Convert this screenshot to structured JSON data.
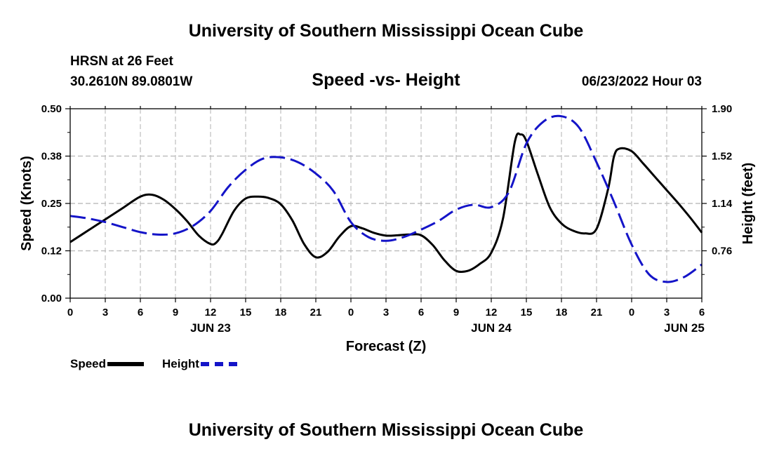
{
  "page": {
    "title_top": "University of Southern Mississippi Ocean Cube",
    "title_bottom": "University of Southern Mississippi Ocean Cube",
    "station": "HRSN at 26 Feet",
    "coords": "30.2610N  89.0801W",
    "chart_title": "Speed -vs- Height",
    "datetime": "06/23/2022 Hour 03"
  },
  "legend": {
    "speed_label": "Speed",
    "height_label": "Height"
  },
  "colors": {
    "speed": "#000000",
    "height": "#1414c8",
    "grid": "#bdbdbd"
  },
  "chart_data": {
    "type": "line",
    "title": "Speed -vs- Height",
    "xlabel": "Forecast (Z)",
    "ylabel_left": "Speed (Knots)",
    "ylabel_right": "Height (feet)",
    "x_unit": "hours since 06/23/2022 00Z",
    "xlim": [
      0,
      54
    ],
    "x_ticks": [
      0,
      3,
      6,
      9,
      12,
      15,
      18,
      21,
      24,
      27,
      30,
      33,
      36,
      39,
      42,
      45,
      48,
      51,
      54
    ],
    "x_tick_labels": [
      "0",
      "3",
      "6",
      "9",
      "12",
      "15",
      "18",
      "21",
      "0",
      "3",
      "6",
      "9",
      "12",
      "15",
      "18",
      "21",
      "0",
      "3",
      "6"
    ],
    "date_labels": [
      {
        "x": 12,
        "label": "JUN 23"
      },
      {
        "x": 36,
        "label": "JUN 24"
      },
      {
        "x": 52.5,
        "label": "JUN 25"
      }
    ],
    "y_left": {
      "lim": [
        0.0,
        0.5
      ],
      "ticks": [
        0.0,
        0.125,
        0.25,
        0.375,
        0.5
      ],
      "tick_labels": [
        "0.00",
        "0.12",
        "0.25",
        "0.38",
        "0.50"
      ]
    },
    "y_right": {
      "lim": [
        0.38,
        1.9
      ],
      "ticks": [
        0.76,
        1.14,
        1.52,
        1.9
      ],
      "tick_labels": [
        "0.76",
        "1.14",
        "1.52",
        "1.90"
      ]
    },
    "grid": true,
    "legend_position": "bottom-left",
    "series": [
      {
        "name": "Speed",
        "axis": "left",
        "style": "solid",
        "x": [
          0,
          1.5,
          3,
          4.5,
          6,
          7,
          8,
          9,
          10,
          11,
          12,
          12.5,
          13,
          14,
          15,
          16,
          17,
          18,
          19,
          20,
          21,
          22,
          23,
          24,
          25,
          26,
          27,
          28,
          29,
          30,
          31,
          32,
          33,
          34,
          35,
          36,
          37,
          38,
          38.5,
          39,
          40,
          41,
          42,
          43,
          44,
          45,
          46,
          46.5,
          47,
          48,
          49,
          50,
          51,
          52,
          53,
          54
        ],
        "y": [
          0.148,
          0.178,
          0.208,
          0.238,
          0.268,
          0.273,
          0.26,
          0.235,
          0.203,
          0.165,
          0.143,
          0.147,
          0.17,
          0.23,
          0.263,
          0.268,
          0.264,
          0.248,
          0.205,
          0.143,
          0.108,
          0.122,
          0.162,
          0.19,
          0.184,
          0.172,
          0.165,
          0.166,
          0.168,
          0.166,
          0.14,
          0.1,
          0.072,
          0.072,
          0.09,
          0.12,
          0.21,
          0.41,
          0.432,
          0.415,
          0.325,
          0.24,
          0.197,
          0.178,
          0.171,
          0.183,
          0.29,
          0.375,
          0.395,
          0.388,
          0.355,
          0.32,
          0.285,
          0.25,
          0.213,
          0.173
        ]
      },
      {
        "name": "Height",
        "axis": "right",
        "style": "dashed",
        "x": [
          0,
          1.5,
          3,
          4.5,
          6,
          7.5,
          9,
          10.5,
          12,
          13.5,
          15,
          16.5,
          18,
          19.5,
          21,
          22.5,
          24,
          25.5,
          27,
          28.5,
          30,
          31.5,
          33,
          34.5,
          36,
          37.5,
          39,
          40.5,
          42,
          43.5,
          45,
          46.5,
          48,
          49.5,
          51,
          52.5,
          54
        ],
        "y": [
          1.04,
          1.02,
          0.99,
          0.95,
          0.91,
          0.89,
          0.9,
          0.96,
          1.08,
          1.27,
          1.41,
          1.5,
          1.51,
          1.47,
          1.38,
          1.24,
          0.99,
          0.87,
          0.84,
          0.87,
          0.93,
          1.0,
          1.09,
          1.13,
          1.11,
          1.23,
          1.62,
          1.8,
          1.84,
          1.75,
          1.47,
          1.15,
          0.81,
          0.57,
          0.51,
          0.55,
          0.65
        ]
      }
    ]
  }
}
